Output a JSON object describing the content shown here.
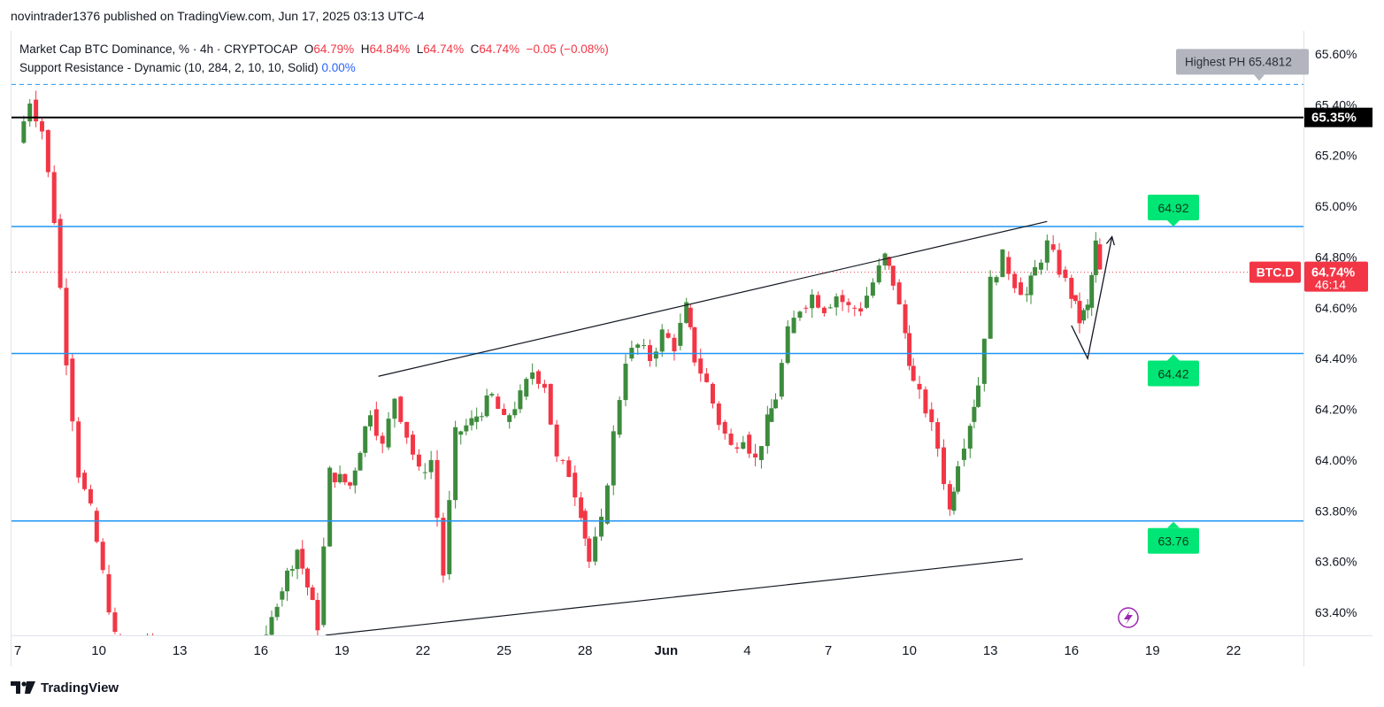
{
  "publish_line": "novintrader1376 published on TradingView.com, Jun 17, 2025 03:13 UTC-4",
  "legend": {
    "symbol": "Market Cap BTC Dominance, % · 4h · CRYPTOCAP",
    "o_label": "O",
    "o": "64.79%",
    "h_label": "H",
    "h": "64.84%",
    "l_label": "L",
    "l": "64.74%",
    "c_label": "C",
    "c": "64.74%",
    "change": "−0.05 (−0.08%)",
    "indicator": "Support Resistance - Dynamic (10, 284, 2, 10, 10, Solid)",
    "indicator_value": "0.00%"
  },
  "footer": {
    "brand": "TradingView"
  },
  "colors": {
    "up": "#3d8b3d",
    "down": "#f23645",
    "level_line": "#2196f3",
    "label_green": "#00e676",
    "price_tag": "#f23645",
    "grey_tag": "#b2b5be"
  },
  "chart_data": {
    "type": "candlestick",
    "interval": "4h",
    "ylim": [
      63.2,
      65.68
    ],
    "y_ticks": [
      63.4,
      63.6,
      63.8,
      64.0,
      64.2,
      64.4,
      64.6,
      64.8,
      65.0,
      65.2,
      65.4,
      65.6
    ],
    "y_tick_labels": [
      "63.40%",
      "63.60%",
      "63.80%",
      "64.00%",
      "64.20%",
      "64.40%",
      "64.60%",
      "64.80%",
      "65.00%",
      "65.20%",
      "65.40%",
      "65.60%"
    ],
    "x_range": [
      7,
      30
    ],
    "x_ticks": [
      {
        "x": 7,
        "label": "7"
      },
      {
        "x": 8,
        "label": "10"
      },
      {
        "x": 9,
        "label": "13"
      },
      {
        "x": 10,
        "label": "16"
      },
      {
        "x": 11,
        "label": "19"
      },
      {
        "x": 12,
        "label": "22"
      },
      {
        "x": 13,
        "label": "25"
      },
      {
        "x": 14,
        "label": "28"
      },
      {
        "x": 15,
        "label": "Jun"
      },
      {
        "x": 16,
        "label": "4"
      },
      {
        "x": 17,
        "label": "7"
      },
      {
        "x": 18,
        "label": "10"
      },
      {
        "x": 19,
        "label": "13"
      },
      {
        "x": 20,
        "label": "16"
      },
      {
        "x": 21,
        "label": "19"
      },
      {
        "x": 22,
        "label": "22"
      }
    ],
    "price_path": [
      [
        7.0,
        65.25
      ],
      [
        7.15,
        65.42
      ],
      [
        7.3,
        65.3
      ],
      [
        7.45,
        64.95
      ],
      [
        7.6,
        64.4
      ],
      [
        7.75,
        63.95
      ],
      [
        7.9,
        63.8
      ],
      [
        8.05,
        63.55
      ],
      [
        8.2,
        63.3
      ],
      [
        8.4,
        63.2
      ],
      [
        8.6,
        63.3
      ],
      [
        8.8,
        63.2
      ],
      [
        10.0,
        63.2
      ],
      [
        10.2,
        63.45
      ],
      [
        10.45,
        63.65
      ],
      [
        10.7,
        63.35
      ],
      [
        10.85,
        63.95
      ],
      [
        11.1,
        63.9
      ],
      [
        11.35,
        64.2
      ],
      [
        11.5,
        64.05
      ],
      [
        11.65,
        64.25
      ],
      [
        11.8,
        64.1
      ],
      [
        11.95,
        63.95
      ],
      [
        12.1,
        64.0
      ],
      [
        12.25,
        63.55
      ],
      [
        12.4,
        64.1
      ],
      [
        12.6,
        64.15
      ],
      [
        12.85,
        64.25
      ],
      [
        13.0,
        64.15
      ],
      [
        13.2,
        64.25
      ],
      [
        13.35,
        64.35
      ],
      [
        13.5,
        64.3
      ],
      [
        13.65,
        64.0
      ],
      [
        13.8,
        63.95
      ],
      [
        13.95,
        63.8
      ],
      [
        14.05,
        63.6
      ],
      [
        14.2,
        63.75
      ],
      [
        14.35,
        64.1
      ],
      [
        14.5,
        64.4
      ],
      [
        14.65,
        64.45
      ],
      [
        14.8,
        64.4
      ],
      [
        14.95,
        64.5
      ],
      [
        15.1,
        64.45
      ],
      [
        15.25,
        64.6
      ],
      [
        15.35,
        64.4
      ],
      [
        15.5,
        64.3
      ],
      [
        15.65,
        64.15
      ],
      [
        15.8,
        64.05
      ],
      [
        15.95,
        64.1
      ],
      [
        16.1,
        64.0
      ],
      [
        16.25,
        64.15
      ],
      [
        16.35,
        64.25
      ],
      [
        16.5,
        64.5
      ],
      [
        16.65,
        64.6
      ],
      [
        16.8,
        64.65
      ],
      [
        16.95,
        64.6
      ],
      [
        17.1,
        64.65
      ],
      [
        17.25,
        64.6
      ],
      [
        17.4,
        64.6
      ],
      [
        17.55,
        64.7
      ],
      [
        17.7,
        64.8
      ],
      [
        17.8,
        64.7
      ],
      [
        17.95,
        64.5
      ],
      [
        18.05,
        64.3
      ],
      [
        18.2,
        64.2
      ],
      [
        18.35,
        64.05
      ],
      [
        18.5,
        63.8
      ],
      [
        18.6,
        64.0
      ],
      [
        18.75,
        64.15
      ],
      [
        18.85,
        64.3
      ],
      [
        19.0,
        64.7
      ],
      [
        19.15,
        64.8
      ],
      [
        19.3,
        64.7
      ],
      [
        19.45,
        64.65
      ],
      [
        19.55,
        64.75
      ],
      [
        19.7,
        64.85
      ],
      [
        19.85,
        64.75
      ],
      [
        20.0,
        64.65
      ],
      [
        20.1,
        64.55
      ],
      [
        20.2,
        64.6
      ],
      [
        20.3,
        64.85
      ],
      [
        20.35,
        64.74
      ]
    ],
    "levels": [
      {
        "value": 64.92,
        "label": "64.92",
        "style": "solid",
        "color": "#2196f3"
      },
      {
        "value": 64.42,
        "label": "64.42",
        "style": "solid",
        "color": "#2196f3"
      },
      {
        "value": 63.76,
        "label": "63.76",
        "style": "solid",
        "color": "#2196f3"
      },
      {
        "value": 65.35,
        "label": "65.35%",
        "style": "solid",
        "color": "#000000"
      },
      {
        "value": 65.48,
        "label": "Highest PH 65.4812",
        "style": "dashed",
        "color": "#2196f3"
      }
    ],
    "current_price": {
      "value": 64.74,
      "label": "64.74%",
      "countdown": "46:14",
      "symbol": "BTC.D"
    },
    "trendlines": [
      {
        "from": [
          11.45,
          64.33
        ],
        "to": [
          19.7,
          64.94
        ]
      },
      {
        "from": [
          10.8,
          63.31
        ],
        "to": [
          19.4,
          63.61
        ]
      }
    ],
    "projection": [
      [
        20.0,
        64.53
      ],
      [
        20.2,
        64.4
      ],
      [
        20.5,
        64.88
      ]
    ]
  }
}
